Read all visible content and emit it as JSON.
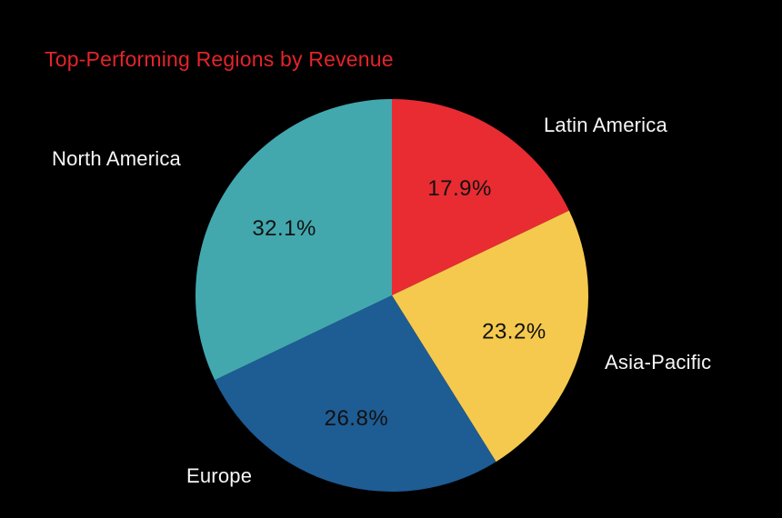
{
  "chart_data": {
    "type": "pie",
    "title": "Top-Performing Regions by Revenue",
    "legend_position": "none",
    "start_angle": "12-o-clock",
    "direction": "clockwise",
    "slices": [
      {
        "label": "Latin America",
        "value": 17.9,
        "pct_label": "17.9%",
        "color": "#e82c32"
      },
      {
        "label": "Asia-Pacific",
        "value": 23.2,
        "pct_label": "23.2%",
        "color": "#f5c94e"
      },
      {
        "label": "Europe",
        "value": 26.8,
        "pct_label": "26.8%",
        "color": "#1e5c94"
      },
      {
        "label": "North America",
        "value": 32.1,
        "pct_label": "32.1%",
        "color": "#42a8ae"
      }
    ]
  },
  "colors": {
    "background": "#000000",
    "title": "#e5232b",
    "percent_text": "#111111",
    "region_label_text": "#f7f7f7"
  }
}
